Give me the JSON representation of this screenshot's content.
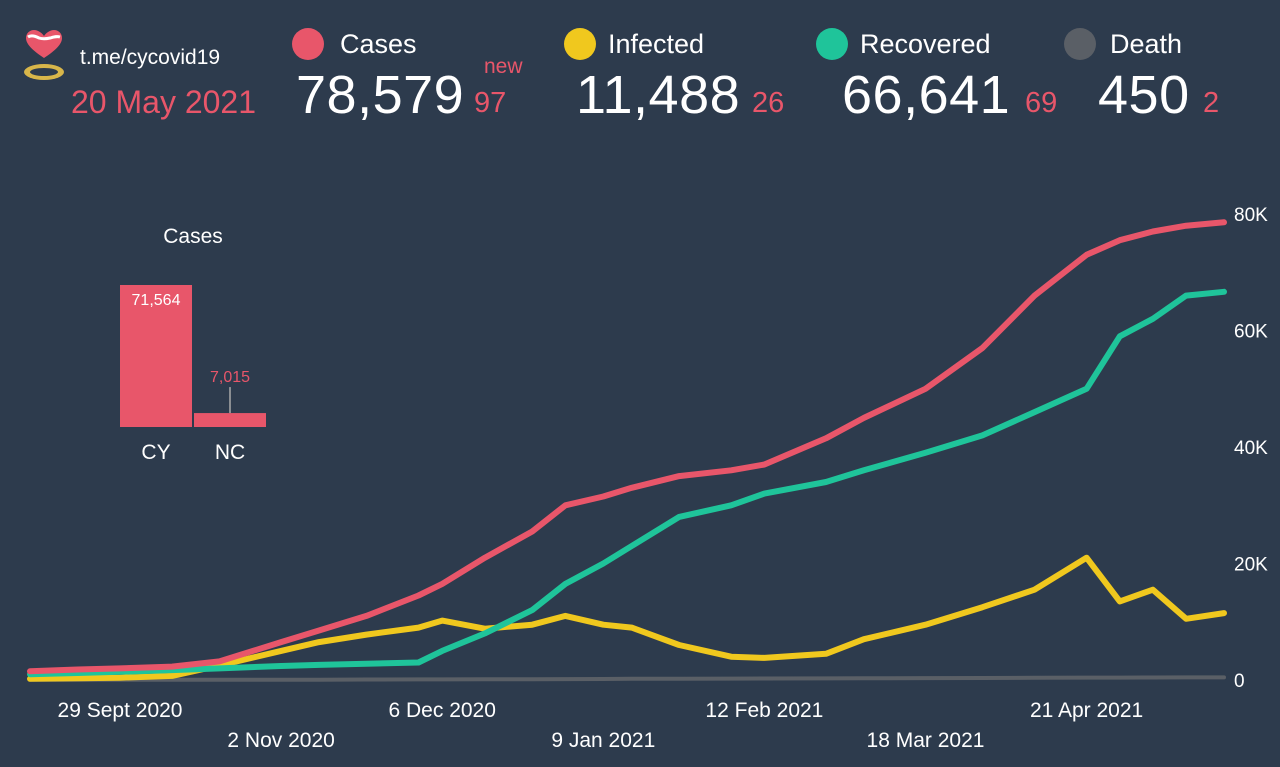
{
  "header": {
    "source": "t.me/cycovid19",
    "date": "20 May 2021",
    "new_label": "new"
  },
  "stats": [
    {
      "label": "Cases",
      "value": "78,579",
      "delta": "97",
      "color": "#e8566a"
    },
    {
      "label": "Infected",
      "value": "11,488",
      "delta": "26",
      "color": "#f0c81e"
    },
    {
      "label": "Recovered",
      "value": "66,641",
      "delta": "69",
      "color": "#1fc49a"
    },
    {
      "label": "Death",
      "value": "450",
      "delta": "2",
      "color": "#5a5f66"
    }
  ],
  "chart_data": [
    {
      "type": "line",
      "x_ticks_top": [
        "29 Sept 2020",
        "6 Dec 2020",
        "12 Feb 2021",
        "21 Apr 2021"
      ],
      "x_ticks_bottom": [
        "2 Nov 2020",
        "9 Jan 2021",
        "18 Mar 2021"
      ],
      "y_ticks": [
        "0",
        "20K",
        "40K",
        "60K",
        "80K"
      ],
      "ylim": [
        0,
        80000
      ],
      "x": [
        "2020-09-10",
        "2020-09-20",
        "2020-09-29",
        "2020-10-10",
        "2020-10-20",
        "2020-11-02",
        "2020-11-10",
        "2020-11-20",
        "2020-12-01",
        "2020-12-06",
        "2020-12-15",
        "2020-12-25",
        "2021-01-01",
        "2021-01-09",
        "2021-01-15",
        "2021-01-25",
        "2021-02-05",
        "2021-02-12",
        "2021-02-25",
        "2021-03-05",
        "2021-03-18",
        "2021-03-30",
        "2021-04-10",
        "2021-04-21",
        "2021-04-28",
        "2021-05-05",
        "2021-05-12",
        "2021-05-20"
      ],
      "series": [
        {
          "name": "Cases",
          "color": "#e8566a",
          "values": [
            1500,
            1800,
            2000,
            2300,
            3200,
            6500,
            8500,
            11000,
            14500,
            16500,
            21000,
            25500,
            30000,
            31500,
            33000,
            35000,
            36000,
            37000,
            41500,
            45000,
            50000,
            57000,
            66000,
            73000,
            75500,
            77000,
            78000,
            78579
          ]
        },
        {
          "name": "Infected",
          "color": "#f0c81e",
          "values": [
            200,
            300,
            400,
            700,
            2500,
            5000,
            6500,
            7800,
            9000,
            10200,
            8800,
            9500,
            11000,
            9500,
            9000,
            6000,
            4000,
            3800,
            4500,
            7000,
            9500,
            12500,
            15500,
            21000,
            13500,
            15500,
            10500,
            11488
          ]
        },
        {
          "name": "Recovered",
          "color": "#1fc49a",
          "values": [
            1000,
            1200,
            1400,
            1700,
            2000,
            2400,
            2600,
            2800,
            3000,
            5000,
            8000,
            12000,
            16500,
            20000,
            23000,
            28000,
            30000,
            32000,
            34000,
            36000,
            39000,
            42000,
            46000,
            50000,
            59000,
            62000,
            66000,
            66641
          ]
        },
        {
          "name": "Death",
          "color": "#5a5f66",
          "values": [
            20,
            25,
            30,
            35,
            40,
            45,
            60,
            80,
            100,
            110,
            120,
            140,
            160,
            180,
            200,
            220,
            240,
            260,
            280,
            300,
            320,
            350,
            380,
            410,
            420,
            430,
            440,
            450
          ]
        }
      ]
    },
    {
      "type": "bar",
      "title": "Cases",
      "categories": [
        "CY",
        "NC"
      ],
      "values": [
        71564,
        7015
      ],
      "value_labels": [
        "71,564",
        "7,015"
      ],
      "color": "#e8566a"
    }
  ]
}
